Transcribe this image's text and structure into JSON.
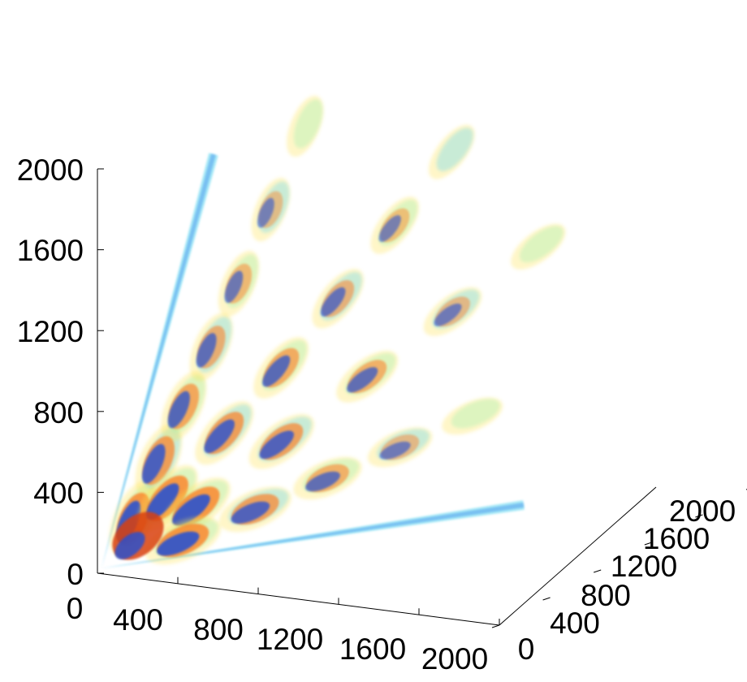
{
  "chart_data": {
    "type": "isosurface-3d",
    "title": "",
    "xlabel": "",
    "ylabel": "",
    "zlabel": "",
    "x_ticks": [
      "0",
      "400",
      "800",
      "1200",
      "1600",
      "2000"
    ],
    "y_ticks": [
      "0",
      "400",
      "800",
      "1200",
      "1600",
      "2000"
    ],
    "z_ticks": [
      "0",
      "400",
      "800",
      "1200",
      "1600",
      "2000"
    ],
    "xlim": [
      0,
      2000
    ],
    "ylim": [
      0,
      2000
    ],
    "zlim": [
      0,
      2000
    ],
    "grid": false,
    "legend": "none",
    "colormap": [
      "#1e4fd6",
      "#3c8ce8",
      "#63d8f0",
      "#9ef0b0",
      "#fff07a",
      "#ffe24a",
      "#ff7a1e",
      "#d8400c"
    ],
    "lobes": [
      {
        "angle_deg": 90,
        "peaks": [
          [
            200,
            200
          ],
          [
            420,
            420
          ],
          [
            640,
            620
          ],
          [
            880,
            840
          ],
          [
            1120,
            1080
          ],
          [
            1400,
            1360
          ],
          [
            1700,
            1680
          ]
        ]
      },
      {
        "angle_deg": 60,
        "peaks": [
          [
            300,
            300
          ],
          [
            600,
            560
          ],
          [
            900,
            820
          ],
          [
            1200,
            1100
          ],
          [
            1500,
            1400
          ],
          [
            1800,
            1700
          ]
        ]
      },
      {
        "angle_deg": 30,
        "peaks": [
          [
            400,
            300
          ],
          [
            800,
            600
          ],
          [
            1200,
            900
          ],
          [
            1600,
            1200
          ],
          [
            2000,
            1500
          ]
        ]
      },
      {
        "angle_deg": 0,
        "peaks": [
          [
            400,
            200
          ],
          [
            800,
            400
          ],
          [
            1200,
            600
          ],
          [
            1600,
            800
          ],
          [
            2000,
            1000
          ]
        ]
      }
    ]
  }
}
